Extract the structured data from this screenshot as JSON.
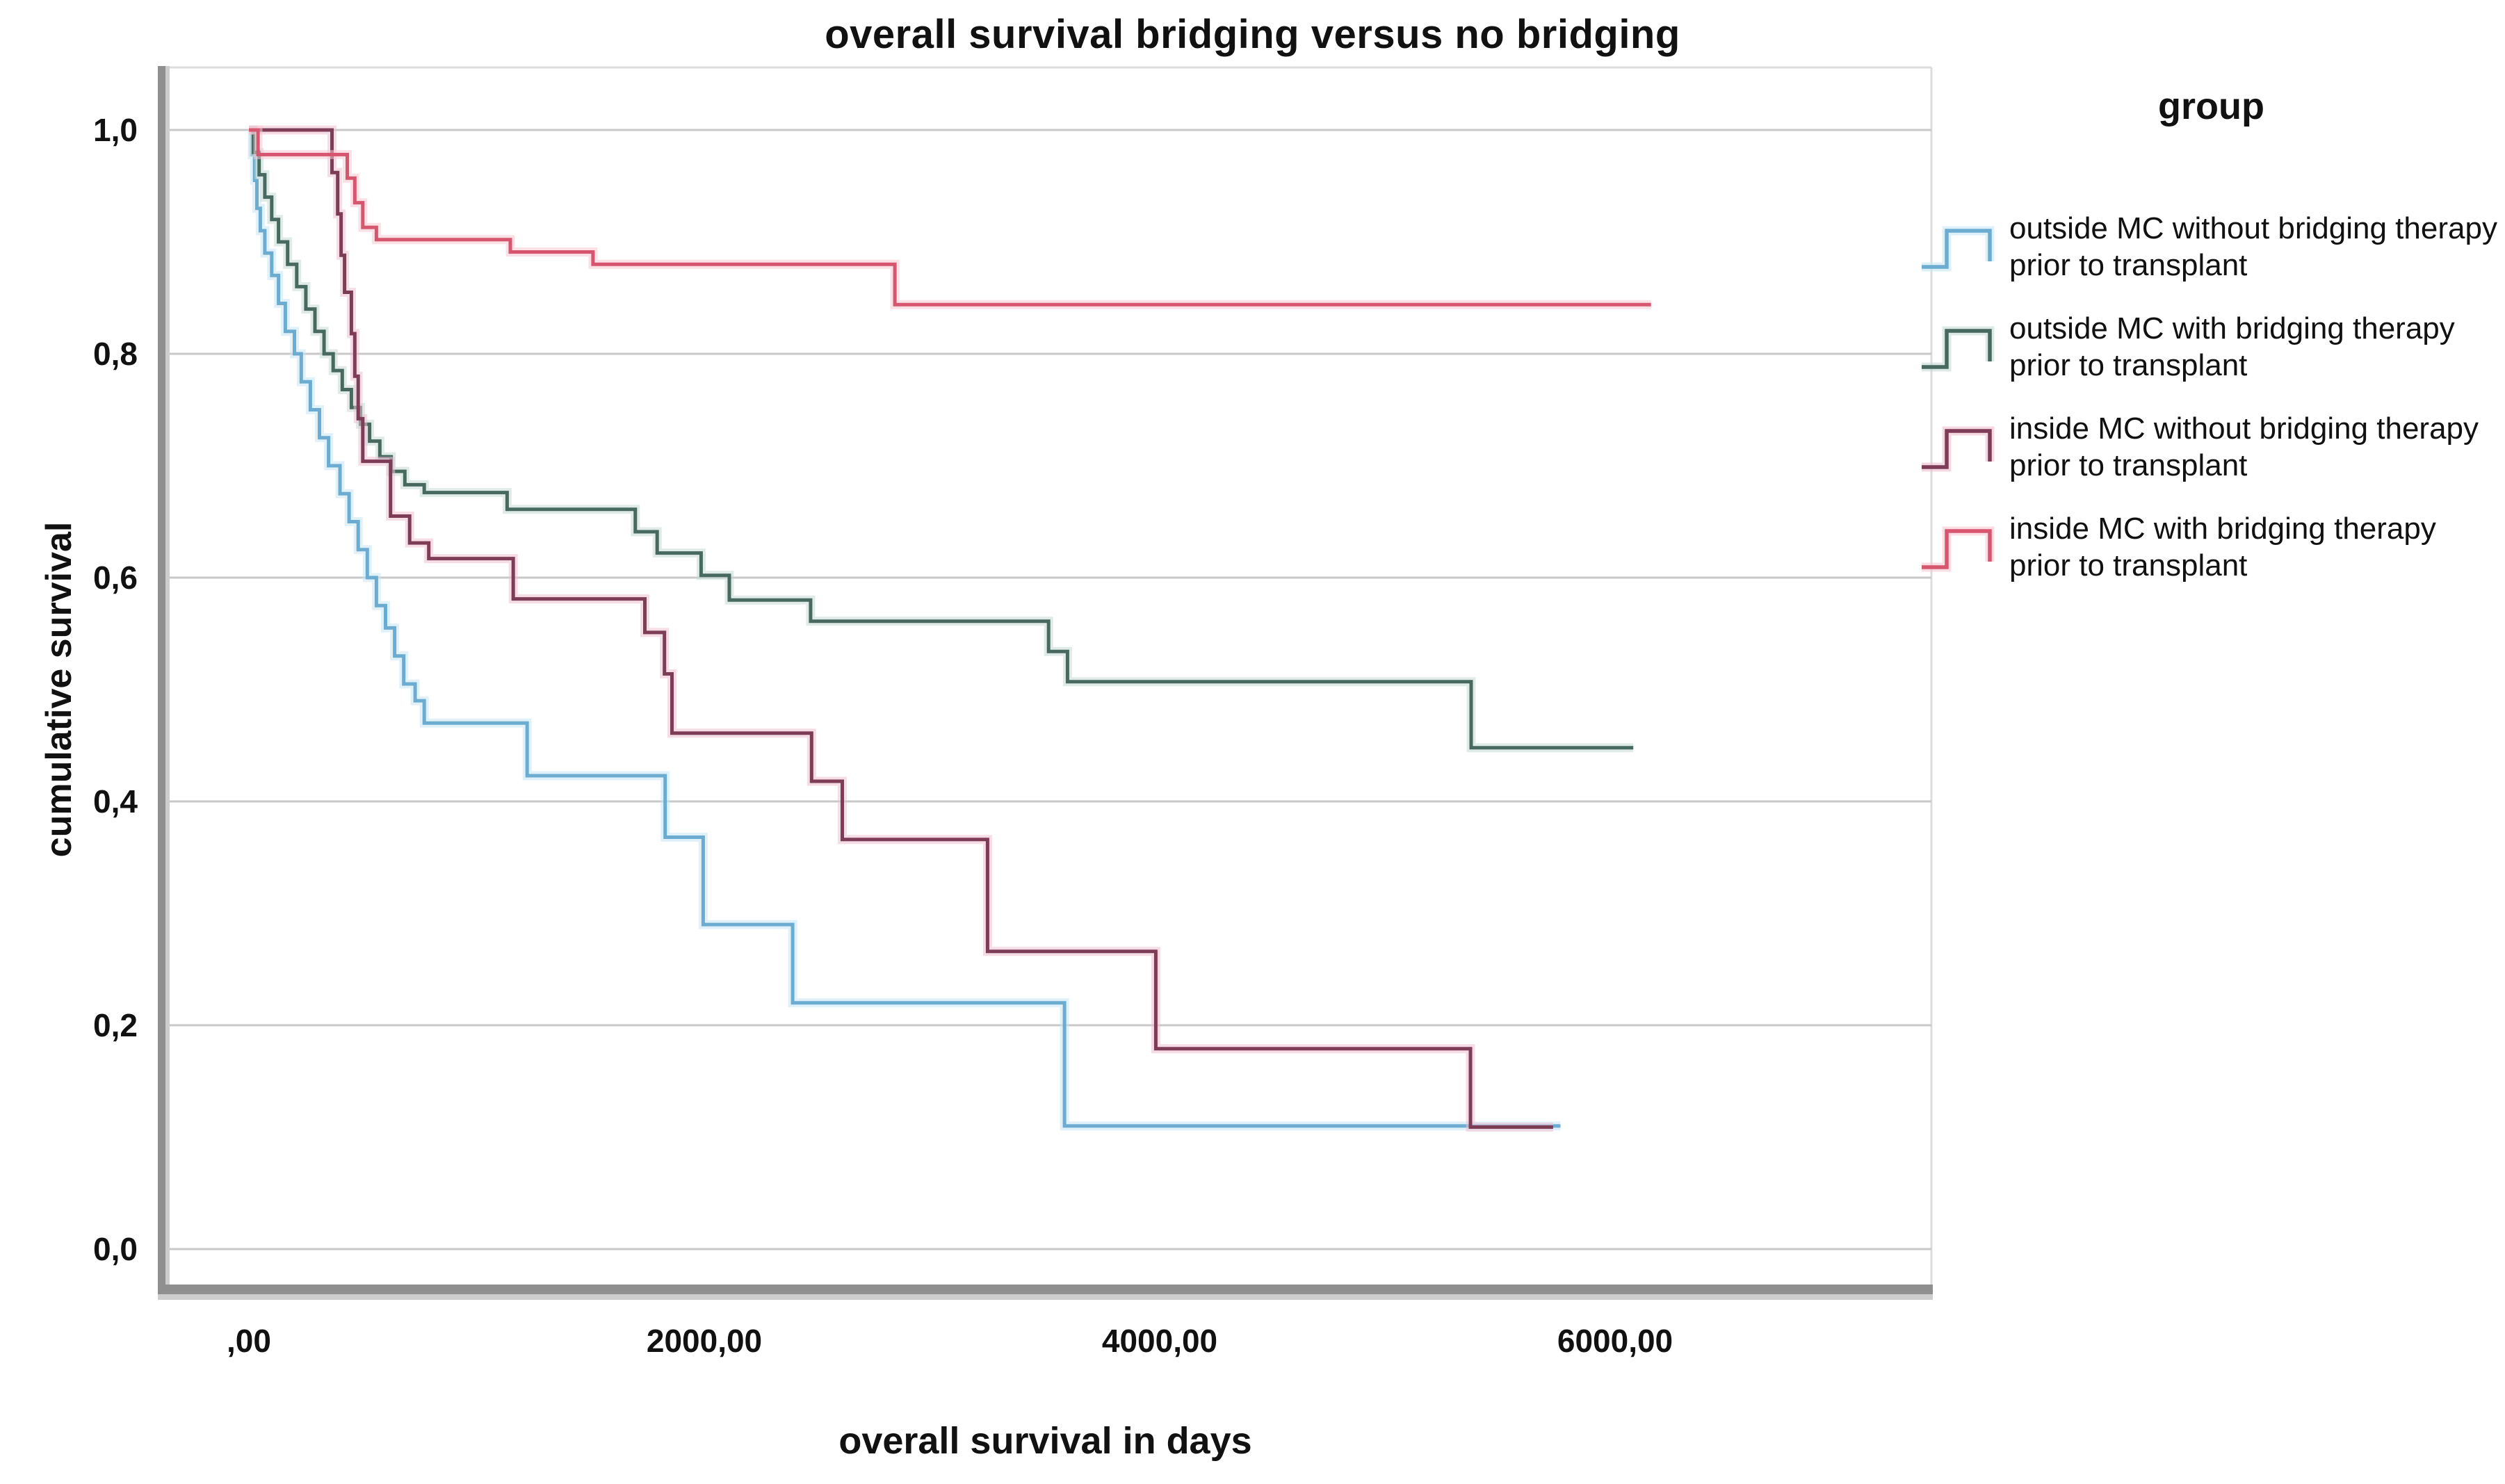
{
  "title": "overall survival bridging versus no bridging",
  "x_axis": {
    "label": "overall survival in days",
    "ticks": [
      ",00",
      "2000,00",
      "4000,00",
      "6000,00"
    ],
    "tick_values": [
      0,
      2000,
      4000,
      6000
    ]
  },
  "y_axis": {
    "label": "cumulative survival",
    "ticks": [
      "1,0",
      "0,8",
      "0,6",
      "0,4",
      "0,2",
      "0,0"
    ],
    "tick_values": [
      1.0,
      0.8,
      0.6,
      0.4,
      0.2,
      0.0
    ]
  },
  "legend": {
    "title": "group",
    "items": [
      {
        "label": "outside MC without bridging therapy prior to transplant",
        "color": "#6CACD1",
        "halo": "#C8E6F4"
      },
      {
        "label": "outside MC with bridging therapy prior to transplant",
        "color": "#47695F",
        "halo": "#C6DBD5"
      },
      {
        "label": "inside MC without bridging therapy prior to transplant",
        "color": "#7E3D56",
        "halo": "#ECC0D0"
      },
      {
        "label": "inside MC with bridging therapy prior to transplant",
        "color": "#D7566F",
        "halo": "#F8C7D2"
      }
    ]
  },
  "chart_data": {
    "type": "line",
    "subtype": "kaplan-meier-step",
    "title": "overall survival bridging versus no bridging",
    "xlabel": "overall survival in days",
    "ylabel": "cumulative survival",
    "xlim": [
      0,
      7395
    ],
    "ylim": [
      0,
      1.057
    ],
    "grid": "horizontal",
    "grid_color": "#C8C8C8",
    "legend_position": "right",
    "series": [
      {
        "id": "outside-mc-without-bridging",
        "name": "outside MC without bridging therapy prior to transplant",
        "color": "#6CACD1",
        "halo": "#C8E6F4",
        "points": [
          [
            0,
            1.0
          ],
          [
            15,
            0.978
          ],
          [
            25,
            0.955
          ],
          [
            35,
            0.93
          ],
          [
            50,
            0.91
          ],
          [
            70,
            0.89
          ],
          [
            100,
            0.87
          ],
          [
            130,
            0.845
          ],
          [
            160,
            0.82
          ],
          [
            200,
            0.8
          ],
          [
            230,
            0.775
          ],
          [
            270,
            0.75
          ],
          [
            310,
            0.725
          ],
          [
            350,
            0.7
          ],
          [
            400,
            0.675
          ],
          [
            440,
            0.65
          ],
          [
            480,
            0.625
          ],
          [
            520,
            0.6
          ],
          [
            560,
            0.575
          ],
          [
            600,
            0.555
          ],
          [
            640,
            0.53
          ],
          [
            680,
            0.505
          ],
          [
            730,
            0.49
          ],
          [
            770,
            0.47
          ],
          [
            1222,
            0.423
          ],
          [
            1828,
            0.368
          ],
          [
            1995,
            0.29
          ],
          [
            2388,
            0.22
          ],
          [
            3582,
            0.11
          ],
          [
            5760,
            0.11
          ]
        ]
      },
      {
        "id": "outside-mc-with-bridging",
        "name": "outside MC with bridging therapy prior to transplant",
        "color": "#47695F",
        "halo": "#C6DBD5",
        "points": [
          [
            0,
            1.0
          ],
          [
            20,
            0.98
          ],
          [
            45,
            0.96
          ],
          [
            70,
            0.94
          ],
          [
            100,
            0.92
          ],
          [
            130,
            0.9
          ],
          [
            170,
            0.88
          ],
          [
            210,
            0.86
          ],
          [
            250,
            0.84
          ],
          [
            290,
            0.82
          ],
          [
            330,
            0.8
          ],
          [
            370,
            0.785
          ],
          [
            410,
            0.768
          ],
          [
            450,
            0.752
          ],
          [
            490,
            0.737
          ],
          [
            530,
            0.722
          ],
          [
            575,
            0.708
          ],
          [
            625,
            0.695
          ],
          [
            685,
            0.683
          ],
          [
            770,
            0.676
          ],
          [
            1134,
            0.661
          ],
          [
            1697,
            0.641
          ],
          [
            1793,
            0.622
          ],
          [
            1986,
            0.602
          ],
          [
            2110,
            0.58
          ],
          [
            2467,
            0.561
          ],
          [
            3512,
            0.534
          ],
          [
            3595,
            0.507
          ],
          [
            5368,
            0.448
          ],
          [
            6080,
            0.448
          ]
        ]
      },
      {
        "id": "inside-mc-without-bridging",
        "name": "inside MC without bridging therapy prior to transplant",
        "color": "#7E3D56",
        "halo": "#ECC0D0",
        "points": [
          [
            0,
            1.0
          ],
          [
            365,
            0.962
          ],
          [
            390,
            0.925
          ],
          [
            405,
            0.888
          ],
          [
            420,
            0.855
          ],
          [
            450,
            0.818
          ],
          [
            465,
            0.78
          ],
          [
            480,
            0.742
          ],
          [
            500,
            0.704
          ],
          [
            622,
            0.655
          ],
          [
            706,
            0.631
          ],
          [
            790,
            0.617
          ],
          [
            1161,
            0.581
          ],
          [
            1739,
            0.551
          ],
          [
            1825,
            0.514
          ],
          [
            1858,
            0.461
          ],
          [
            2471,
            0.418
          ],
          [
            2606,
            0.366
          ],
          [
            3244,
            0.266
          ],
          [
            3983,
            0.179
          ],
          [
            5365,
            0.109
          ],
          [
            5728,
            0.109
          ]
        ]
      },
      {
        "id": "inside-mc-with-bridging",
        "name": "inside MC with bridging therapy prior to transplant",
        "color": "#D7566F",
        "halo": "#F8C7D2",
        "points": [
          [
            0,
            1.0
          ],
          [
            40,
            0.978
          ],
          [
            432,
            0.957
          ],
          [
            465,
            0.935
          ],
          [
            500,
            0.913
          ],
          [
            560,
            0.902
          ],
          [
            1148,
            0.891
          ],
          [
            1511,
            0.88
          ],
          [
            2837,
            0.844
          ],
          [
            6158,
            0.844
          ]
        ]
      }
    ]
  }
}
